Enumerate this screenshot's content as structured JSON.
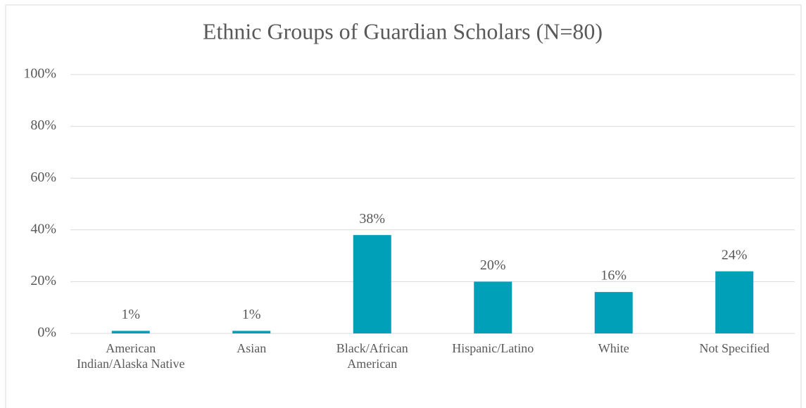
{
  "chart_data": {
    "type": "bar",
    "title": "Ethnic Groups of Guardian Scholars (N=80)",
    "categories": [
      "American Indian/Alaska Native",
      "Asian",
      "Black/African American",
      "Hispanic/Latino",
      "White",
      "Not Specified"
    ],
    "values": [
      1,
      1,
      38,
      20,
      16,
      24
    ],
    "value_labels": [
      "1%",
      "1%",
      "38%",
      "20%",
      "16%",
      "24%"
    ],
    "color": "#00a0b8",
    "ylim": [
      0,
      100
    ],
    "yticks": [
      {
        "value": 0,
        "label": "0%"
      },
      {
        "value": 20,
        "label": "20%"
      },
      {
        "value": 40,
        "label": "40%"
      },
      {
        "value": 60,
        "label": "60%"
      },
      {
        "value": 80,
        "label": "80%"
      },
      {
        "value": 100,
        "label": "100%"
      }
    ],
    "grid": true
  }
}
